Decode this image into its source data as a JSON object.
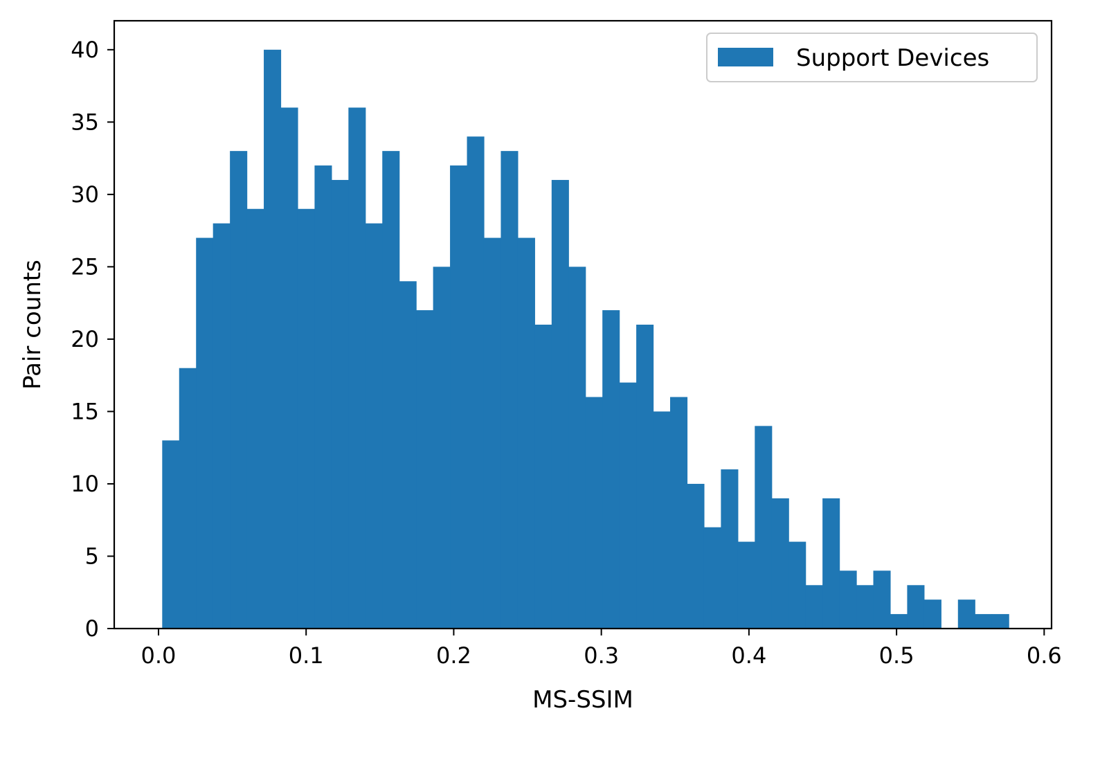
{
  "chart_data": {
    "type": "bar",
    "title": "",
    "xlabel": "MS-SSIM",
    "ylabel": "Pair counts",
    "xlim": [
      -0.03,
      0.605
    ],
    "ylim": [
      0,
      42
    ],
    "grid": false,
    "legend_position": "top-right",
    "x_ticks": [
      0.0,
      0.1,
      0.2,
      0.3,
      0.4,
      0.5,
      0.6
    ],
    "x_tick_labels": [
      "0.0",
      "0.1",
      "0.2",
      "0.3",
      "0.4",
      "0.5",
      "0.6"
    ],
    "y_ticks": [
      0,
      5,
      10,
      15,
      20,
      25,
      30,
      35,
      40
    ],
    "y_tick_labels": [
      "0",
      "5",
      "10",
      "15",
      "20",
      "25",
      "30",
      "35",
      "40"
    ],
    "bin_start": 0.0025,
    "bin_width": 0.01147,
    "series": [
      {
        "name": "Support Devices",
        "color": "#1f77b4",
        "values": [
          13,
          18,
          27,
          28,
          33,
          29,
          40,
          36,
          29,
          32,
          31,
          36,
          28,
          33,
          24,
          22,
          25,
          32,
          34,
          27,
          33,
          27,
          21,
          31,
          25,
          16,
          22,
          17,
          21,
          15,
          16,
          10,
          7,
          11,
          6,
          14,
          9,
          6,
          3,
          9,
          4,
          3,
          4,
          1,
          3,
          2,
          0,
          2,
          1,
          1
        ]
      }
    ]
  }
}
